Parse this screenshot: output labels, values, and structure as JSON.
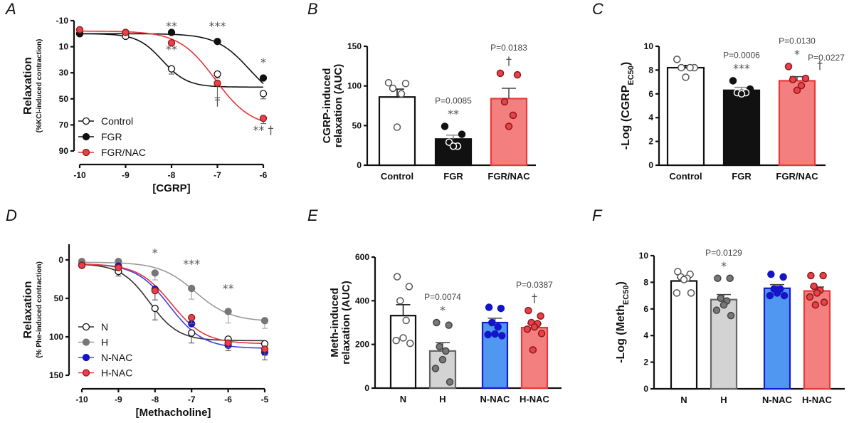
{
  "colors": {
    "black": "#111111",
    "white": "#ffffff",
    "gray_dot": "#777777",
    "gray_bar": "#d3d3d3",
    "gray_line": "#9a9a9a",
    "red_line": "#e8353b",
    "red_dot": "#e8414a",
    "red_bar": "#f47f7f",
    "red_border": "#e83a3a",
    "blue_dot": "#1414c8",
    "blue_bar": "#4f97f0",
    "blue_border": "#1a1ad0",
    "sig": "#555555"
  },
  "chart_data": [
    {
      "panel": "A",
      "type": "line",
      "xlabel": "[CGRP]",
      "ylabel": "Relaxation",
      "ylabel_sub": "(%KCl-induced contraction)",
      "x": [
        -10,
        -9,
        -8,
        -7,
        -6
      ],
      "xticks": [
        "-10",
        "-9",
        "-8",
        "-7",
        "-6"
      ],
      "yticks": [
        "-10",
        "10",
        "30",
        "50",
        "70",
        "90"
      ],
      "ylim": [
        -10,
        90
      ],
      "y_inverted": true,
      "legend_position": "bottom-left",
      "series": [
        {
          "name": "Control",
          "marker": "open",
          "color": "#111111",
          "values": [
            0,
            2,
            27,
            31,
            46
          ],
          "sem": [
            0,
            1,
            4,
            3,
            4
          ],
          "fit": {
            "top": 0,
            "bottom": 41,
            "logEC50": -8.2,
            "hill": 1.6
          }
        },
        {
          "name": "FGR",
          "marker": "filled",
          "color": "#111111",
          "values": [
            0,
            -1,
            -1,
            6,
            34
          ],
          "sem": [
            0,
            0,
            0,
            0,
            0
          ],
          "fit": {
            "top": 0,
            "bottom": 55,
            "logEC50": -6.3,
            "hill": 1.2
          }
        },
        {
          "name": "FGR/NAC",
          "marker": "filled-red",
          "color": "#e8353b",
          "values": [
            -3,
            -1,
            7,
            38,
            65
          ],
          "sem": [
            0,
            0,
            0,
            11,
            4
          ],
          "fit": {
            "top": -2,
            "bottom": 72,
            "logEC50": -7.05,
            "hill": 1.1
          }
        }
      ],
      "annotations": [
        {
          "x": -8,
          "y": -3,
          "text": "**"
        },
        {
          "x": -8,
          "y": 15,
          "text": "**"
        },
        {
          "x": -7,
          "y": -3,
          "text": "***"
        },
        {
          "x": -6,
          "y": 25,
          "text": "*"
        },
        {
          "x": -7,
          "y": 55,
          "text": "†"
        },
        {
          "x": -6,
          "y": 77,
          "text": "** †"
        }
      ]
    },
    {
      "panel": "B",
      "type": "bar",
      "ylabel": "CGRP-induced relaxation (AUC)",
      "categories": [
        "Control",
        "FGR",
        "FGR/NAC"
      ],
      "values": [
        86,
        33,
        84
      ],
      "sem": [
        10,
        5,
        13
      ],
      "points": [
        [
          104,
          103,
          97,
          90,
          48
        ],
        [
          49,
          39,
          29,
          24,
          24
        ],
        [
          116,
          114,
          80,
          63,
          49
        ]
      ],
      "yticks": [
        "0",
        "50",
        "100",
        "150"
      ],
      "ylim": [
        0,
        150
      ],
      "annotations": [
        {
          "category": "FGR",
          "lines": [
            "P=0.0085",
            "**"
          ]
        },
        {
          "category": "FGR/NAC",
          "lines": [
            "P=0.0183",
            "†"
          ]
        }
      ]
    },
    {
      "panel": "C",
      "type": "bar",
      "ylabel": "-Log (CGRP",
      "ylabel_subscript": "EC50",
      "categories": [
        "Control",
        "FGR",
        "FGR/NAC"
      ],
      "values": [
        8.2,
        6.3,
        7.1
      ],
      "sem": [
        0.2,
        0.25,
        0.35
      ],
      "points": [
        [
          8.9,
          8.2,
          8.2,
          8.2,
          7.4
        ],
        [
          7.1,
          6.4,
          6.1,
          6.1,
          6.0
        ],
        [
          8.3,
          7.3,
          7.2,
          6.7,
          6.3
        ]
      ],
      "yticks": [
        "0",
        "2",
        "4",
        "6",
        "8",
        "10"
      ],
      "ylim": [
        0,
        10
      ],
      "annotations": [
        {
          "category": "FGR",
          "lines": [
            "P=0.0006",
            "***"
          ]
        },
        {
          "category": "FGR/NAC",
          "lines": [
            "P=0.0130",
            "*"
          ]
        },
        {
          "category": "FGR/NAC-right",
          "lines": [
            "P=0.0227",
            "†"
          ]
        }
      ]
    },
    {
      "panel": "D",
      "type": "line",
      "xlabel": "[Methacholine]",
      "ylabel": "Relaxation",
      "ylabel_sub": "(% Phe-induced contraction)",
      "x": [
        -10,
        -9,
        -8,
        -7,
        -6,
        -5
      ],
      "xticks": [
        "-10",
        "-9",
        "-8",
        "-7",
        "-6",
        "-5"
      ],
      "yticks": [
        "0",
        "50",
        "100",
        "150"
      ],
      "ylim": [
        -20,
        150
      ],
      "y_inverted": true,
      "legend_position": "bottom-left",
      "series": [
        {
          "name": "N",
          "marker": "open",
          "color": "#333333",
          "values": [
            6,
            15,
            63,
            95,
            103,
            109
          ],
          "sem": [
            0,
            6,
            15,
            13,
            3,
            3
          ],
          "fit": {
            "top": 5,
            "bottom": 105,
            "logEC50": -8.15,
            "hill": 1.1
          }
        },
        {
          "name": "H",
          "marker": "filled-gray",
          "color": "#9a9a9a",
          "values": [
            2,
            2,
            17,
            37,
            67,
            79
          ],
          "sem": [
            0,
            4,
            9,
            14,
            15,
            10
          ],
          "fit": {
            "top": 3,
            "bottom": 80,
            "logEC50": -6.9,
            "hill": 0.9
          }
        },
        {
          "name": "N-NAC",
          "marker": "filled-blue",
          "color": "#4040e0",
          "values": [
            7,
            8,
            38,
            83,
            111,
            120
          ],
          "sem": [
            0,
            0,
            0,
            0,
            7,
            10
          ],
          "fit": {
            "top": 5,
            "bottom": 115,
            "logEC50": -7.6,
            "hill": 0.95
          }
        },
        {
          "name": "H-NAC",
          "marker": "filled-red",
          "color": "#e8353b",
          "values": [
            7,
            10,
            40,
            75,
            108,
            116
          ],
          "sem": [
            0,
            0,
            12,
            8,
            6,
            8
          ],
          "fit": {
            "top": 5,
            "bottom": 109,
            "logEC50": -7.55,
            "hill": 0.95
          }
        }
      ],
      "annotations": [
        {
          "x": -8,
          "y": -4,
          "text": "*"
        },
        {
          "x": -7,
          "y": 10,
          "text": "***"
        },
        {
          "x": -6,
          "y": 42,
          "text": "**"
        }
      ]
    },
    {
      "panel": "E",
      "type": "bar",
      "ylabel": "Meth-induced relaxation (AUC)",
      "categories": [
        "N",
        "H",
        "N-NAC",
        "H-NAC"
      ],
      "values": [
        332,
        170,
        300,
        277
      ],
      "sem": [
        50,
        38,
        20,
        18
      ],
      "points": [
        [
          510,
          465,
          400,
          310,
          230,
          218,
          205
        ],
        [
          300,
          288,
          190,
          170,
          130,
          90,
          28
        ],
        [
          370,
          365,
          300,
          280,
          248,
          245,
          240
        ],
        [
          355,
          330,
          300,
          295,
          280,
          270,
          250,
          175
        ]
      ],
      "yticks": [
        "0",
        "200",
        "400",
        "600"
      ],
      "ylim": [
        0,
        600
      ],
      "annotations": [
        {
          "category": "H",
          "lines": [
            "P=0.0074",
            "*"
          ]
        },
        {
          "category": "H-NAC",
          "lines": [
            "P=0.0387",
            "†"
          ]
        }
      ]
    },
    {
      "panel": "F",
      "type": "bar",
      "ylabel": "-Log (Meth",
      "ylabel_subscript": "EC50",
      "categories": [
        "N",
        "H",
        "N-NAC",
        "H-NAC"
      ],
      "values": [
        8.1,
        6.7,
        7.55,
        7.35
      ],
      "sem": [
        0.25,
        0.38,
        0.28,
        0.3
      ],
      "points": [
        [
          8.8,
          8.6,
          8.4,
          8.3,
          8.2,
          7.2,
          7.2
        ],
        [
          8.3,
          8.3,
          6.8,
          6.6,
          6.3,
          5.9,
          5.5
        ],
        [
          8.6,
          8.4,
          7.5,
          7.5,
          7.2,
          7.0,
          7.0
        ],
        [
          8.5,
          8.5,
          7.7,
          7.4,
          7.2,
          6.9,
          6.5,
          6.3
        ]
      ],
      "yticks": [
        "0",
        "2",
        "4",
        "6",
        "8",
        "10"
      ],
      "ylim": [
        0,
        10
      ],
      "annotations": [
        {
          "category": "H",
          "lines": [
            "P=0.0129",
            "*"
          ]
        }
      ]
    }
  ],
  "panel_letters": [
    "A",
    "B",
    "C",
    "D",
    "E",
    "F"
  ]
}
